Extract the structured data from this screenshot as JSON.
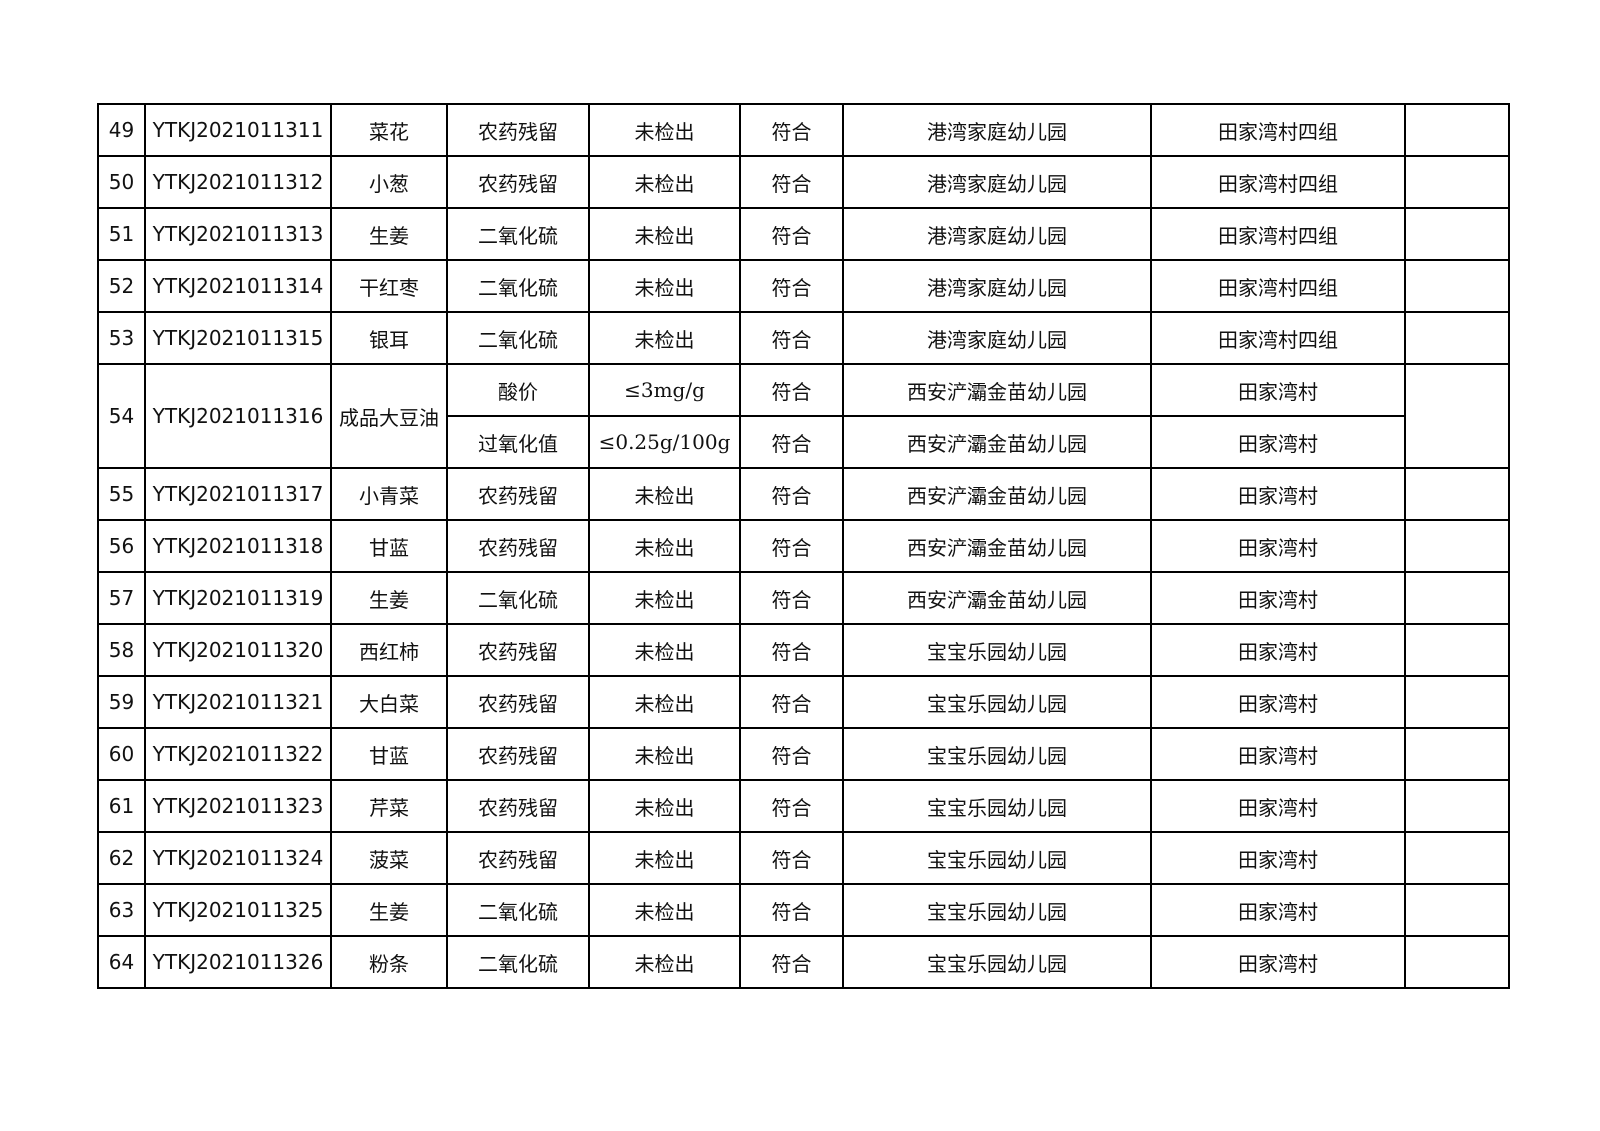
{
  "table": {
    "rows": [
      {
        "no": "49",
        "id": "YTKJ2021011311",
        "sample": "菜花",
        "tests": [
          [
            "农药残留",
            "未检出",
            "符合",
            "港湾家庭幼儿园",
            "田家湾村四组"
          ]
        ]
      },
      {
        "no": "50",
        "id": "YTKJ2021011312",
        "sample": "小葱",
        "tests": [
          [
            "农药残留",
            "未检出",
            "符合",
            "港湾家庭幼儿园",
            "田家湾村四组"
          ]
        ]
      },
      {
        "no": "51",
        "id": "YTKJ2021011313",
        "sample": "生姜",
        "tests": [
          [
            "二氧化硫",
            "未检出",
            "符合",
            "港湾家庭幼儿园",
            "田家湾村四组"
          ]
        ]
      },
      {
        "no": "52",
        "id": "YTKJ2021011314",
        "sample": "干红枣",
        "tests": [
          [
            "二氧化硫",
            "未检出",
            "符合",
            "港湾家庭幼儿园",
            "田家湾村四组"
          ]
        ]
      },
      {
        "no": "53",
        "id": "YTKJ2021011315",
        "sample": "银耳",
        "tests": [
          [
            "二氧化硫",
            "未检出",
            "符合",
            "港湾家庭幼儿园",
            "田家湾村四组"
          ]
        ]
      },
      {
        "no": "54",
        "id": "YTKJ2021011316",
        "sample": "成品大豆油",
        "tests": [
          [
            "酸价",
            "≤3mg/g",
            "符合",
            "西安浐灞金苗幼儿园",
            "田家湾村"
          ],
          [
            "过氧化值",
            "≤0.25g/100g",
            "符合",
            "西安浐灞金苗幼儿园",
            "田家湾村"
          ]
        ]
      },
      {
        "no": "55",
        "id": "YTKJ2021011317",
        "sample": "小青菜",
        "tests": [
          [
            "农药残留",
            "未检出",
            "符合",
            "西安浐灞金苗幼儿园",
            "田家湾村"
          ]
        ]
      },
      {
        "no": "56",
        "id": "YTKJ2021011318",
        "sample": "甘蓝",
        "tests": [
          [
            "农药残留",
            "未检出",
            "符合",
            "西安浐灞金苗幼儿园",
            "田家湾村"
          ]
        ]
      },
      {
        "no": "57",
        "id": "YTKJ2021011319",
        "sample": "生姜",
        "tests": [
          [
            "二氧化硫",
            "未检出",
            "符合",
            "西安浐灞金苗幼儿园",
            "田家湾村"
          ]
        ]
      },
      {
        "no": "58",
        "id": "YTKJ2021011320",
        "sample": "西红柿",
        "tests": [
          [
            "农药残留",
            "未检出",
            "符合",
            "宝宝乐园幼儿园",
            "田家湾村"
          ]
        ]
      },
      {
        "no": "59",
        "id": "YTKJ2021011321",
        "sample": "大白菜",
        "tests": [
          [
            "农药残留",
            "未检出",
            "符合",
            "宝宝乐园幼儿园",
            "田家湾村"
          ]
        ]
      },
      {
        "no": "60",
        "id": "YTKJ2021011322",
        "sample": "甘蓝",
        "tests": [
          [
            "农药残留",
            "未检出",
            "符合",
            "宝宝乐园幼儿园",
            "田家湾村"
          ]
        ]
      },
      {
        "no": "61",
        "id": "YTKJ2021011323",
        "sample": "芹菜",
        "tests": [
          [
            "农药残留",
            "未检出",
            "符合",
            "宝宝乐园幼儿园",
            "田家湾村"
          ]
        ]
      },
      {
        "no": "62",
        "id": "YTKJ2021011324",
        "sample": "菠菜",
        "tests": [
          [
            "农药残留",
            "未检出",
            "符合",
            "宝宝乐园幼儿园",
            "田家湾村"
          ]
        ]
      },
      {
        "no": "63",
        "id": "YTKJ2021011325",
        "sample": "生姜",
        "tests": [
          [
            "二氧化硫",
            "未检出",
            "符合",
            "宝宝乐园幼儿园",
            "田家湾村"
          ]
        ]
      },
      {
        "no": "64",
        "id": "YTKJ2021011326",
        "sample": "粉条",
        "tests": [
          [
            "二氧化硫",
            "未检出",
            "符合",
            "宝宝乐园幼儿园",
            "田家湾村"
          ]
        ]
      }
    ]
  }
}
